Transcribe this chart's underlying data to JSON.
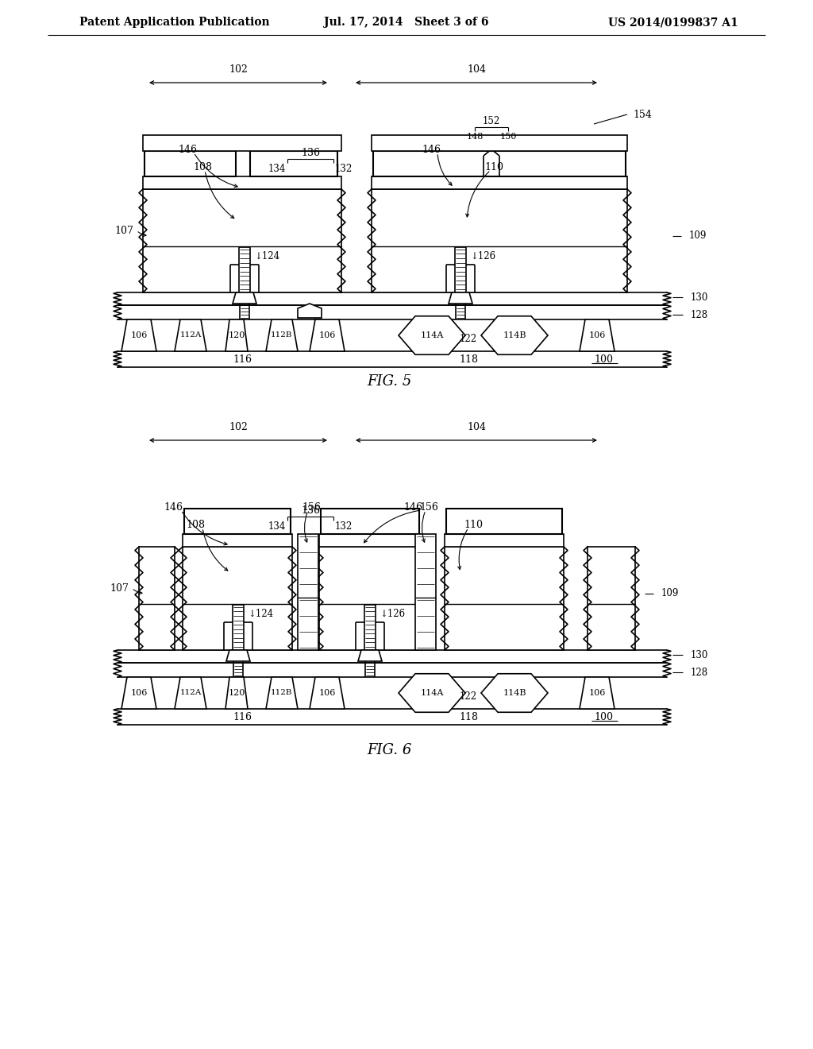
{
  "header_left": "Patent Application Publication",
  "header_mid": "Jul. 17, 2014   Sheet 3 of 6",
  "header_right": "US 2014/0199837 A1",
  "fig5_label": "FIG. 5",
  "fig6_label": "FIG. 6",
  "bg": "#ffffff"
}
